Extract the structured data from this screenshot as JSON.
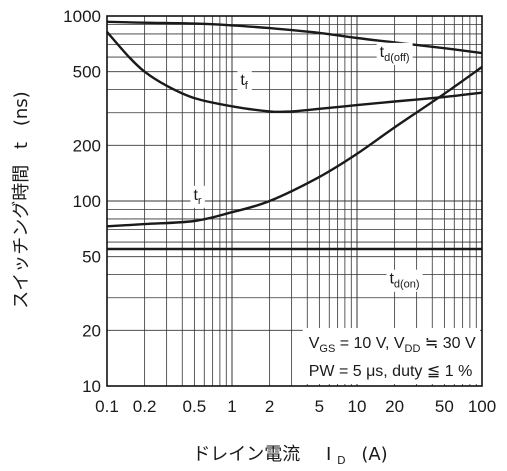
{
  "chart_data": {
    "type": "line",
    "xlabel": {
      "main": "ドレイン電流",
      "sym": "I",
      "sub": "D",
      "unit": "(A)"
    },
    "ylabel": {
      "main": "スイッチング時間",
      "sym": "t",
      "unit": "(ns)"
    },
    "xscale": "log",
    "yscale": "log",
    "xlim": [
      0.1,
      100
    ],
    "ylim": [
      10,
      1000
    ],
    "grid": true,
    "x_ticks": [
      {
        "v": 0.1,
        "t": "0.1"
      },
      {
        "v": 0.2,
        "t": "0.2"
      },
      {
        "v": 0.5,
        "t": "0.5"
      },
      {
        "v": 1,
        "t": "1"
      },
      {
        "v": 2,
        "t": "2"
      },
      {
        "v": 5,
        "t": "5"
      },
      {
        "v": 10,
        "t": "10"
      },
      {
        "v": 20,
        "t": "20"
      },
      {
        "v": 50,
        "t": "50"
      },
      {
        "v": 100,
        "t": "100"
      }
    ],
    "y_ticks": [
      {
        "v": 10,
        "t": "10"
      },
      {
        "v": 20,
        "t": "20"
      },
      {
        "v": 50,
        "t": "50"
      },
      {
        "v": 100,
        "t": "100"
      },
      {
        "v": 200,
        "t": "200"
      },
      {
        "v": 500,
        "t": "500"
      },
      {
        "v": 1000,
        "t": "1000"
      }
    ],
    "series": [
      {
        "name": "t_d(off)",
        "label_main": "t",
        "label_sub": "d(off)",
        "label_at": [
          20,
          640
        ],
        "x": [
          0.1,
          0.2,
          0.5,
          1,
          2,
          5,
          10,
          20,
          50,
          100
        ],
        "y": [
          930,
          920,
          910,
          890,
          860,
          810,
          760,
          720,
          670,
          630
        ]
      },
      {
        "name": "t_f",
        "label_main": "t",
        "label_sub": "f",
        "label_at": [
          1.25,
          450
        ],
        "x": [
          0.1,
          0.15,
          0.2,
          0.3,
          0.5,
          1,
          2,
          3,
          5,
          10,
          20,
          50,
          100
        ],
        "y": [
          820,
          600,
          500,
          420,
          360,
          325,
          305,
          305,
          315,
          330,
          345,
          365,
          385
        ]
      },
      {
        "name": "t_r",
        "label_main": "t",
        "label_sub": "r",
        "label_at": [
          0.53,
          108
        ],
        "x": [
          0.1,
          0.2,
          0.5,
          1,
          2,
          5,
          10,
          20,
          50,
          100
        ],
        "y": [
          73,
          75,
          78,
          87,
          100,
          135,
          180,
          250,
          380,
          530
        ]
      },
      {
        "name": "t_d(on)",
        "label_main": "t",
        "label_sub": "d(on)",
        "label_at": [
          24,
          38
        ],
        "x": [
          0.1,
          0.5,
          1,
          5,
          10,
          50,
          100
        ],
        "y": [
          55,
          55,
          55,
          55,
          55,
          55,
          55
        ]
      }
    ],
    "conditions": [
      {
        "parts": [
          {
            "t": "V",
            "sub": false
          },
          {
            "t": "GS",
            "sub": true
          },
          {
            "t": " = 10 V, V",
            "sub": false
          },
          {
            "t": "DD",
            "sub": true
          },
          {
            "t": " ≒ 30 V",
            "sub": false
          }
        ]
      },
      {
        "parts": [
          {
            "t": "PW = 5  μs, duty ≦ 1 %",
            "sub": false
          }
        ]
      }
    ]
  }
}
